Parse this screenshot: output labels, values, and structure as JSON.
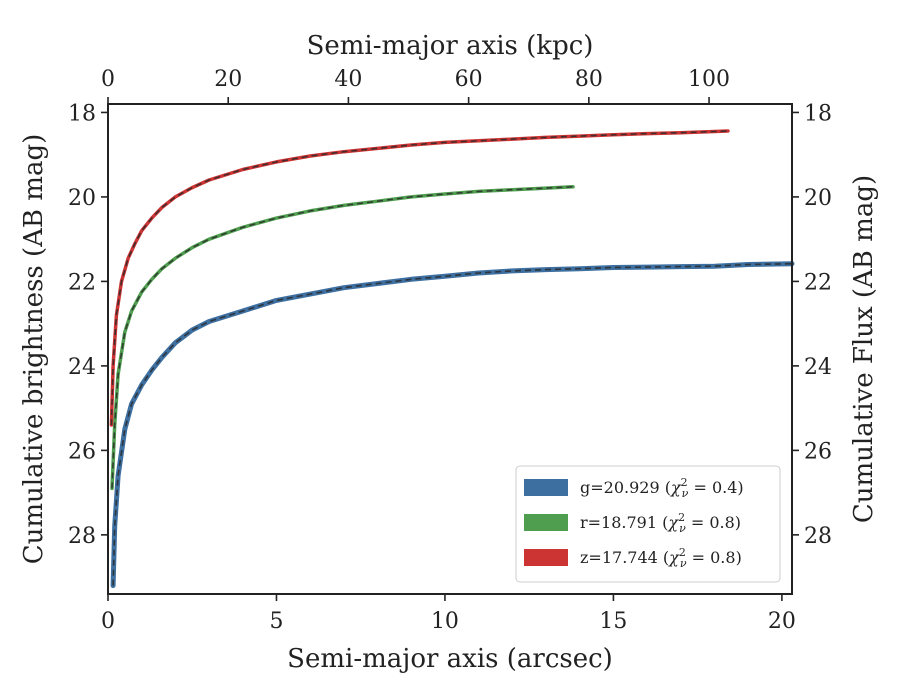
{
  "chart_data": {
    "type": "line",
    "xlabel": "Semi-major axis (arcsec)",
    "ylabel": "Cumulative brightness (AB mag)",
    "x2label": "Semi-major axis (kpc)",
    "y2label": "Cumulative Flux (AB mag)",
    "xlim": [
      0,
      20.3
    ],
    "ylim": [
      29.4,
      17.8
    ],
    "x2lim": [
      0,
      113.8
    ],
    "xticks": [
      0,
      5,
      10,
      15,
      20
    ],
    "xtick_labels": [
      "0",
      "5",
      "10",
      "15",
      "20"
    ],
    "yticks": [
      18,
      20,
      22,
      24,
      26,
      28
    ],
    "ytick_labels": [
      "18",
      "20",
      "22",
      "24",
      "26",
      "28"
    ],
    "x2ticks": [
      0,
      20,
      40,
      60,
      80,
      100
    ],
    "x2tick_labels": [
      "0",
      "20",
      "40",
      "60",
      "80",
      "100"
    ],
    "y2ticks": [
      18,
      20,
      22,
      24,
      26,
      28
    ],
    "y2tick_labels": [
      "18",
      "20",
      "22",
      "24",
      "26",
      "28"
    ],
    "legend_position": "lower-right",
    "series": [
      {
        "name": "g=20.929 (χ²ν = 0.4)",
        "legend_main": "g=20.929 (",
        "legend_chi": "χ",
        "legend_sup": "2",
        "legend_sub": "ν",
        "legend_rest": " = 0.4)",
        "color": "#3d6fa0",
        "x": [
          0.15,
          0.2,
          0.3,
          0.5,
          0.7,
          1.0,
          1.3,
          1.6,
          2.0,
          2.5,
          3.0,
          4.0,
          5.0,
          6.0,
          7.0,
          8.0,
          9.0,
          10.0,
          11.0,
          12.0,
          13.0,
          14.0,
          15.0,
          16.0,
          17.0,
          18.0,
          19.0,
          20.3
        ],
        "values": [
          29.2,
          27.8,
          26.6,
          25.5,
          24.9,
          24.45,
          24.1,
          23.8,
          23.45,
          23.15,
          22.95,
          22.7,
          22.45,
          22.3,
          22.15,
          22.05,
          21.95,
          21.88,
          21.8,
          21.75,
          21.72,
          21.7,
          21.67,
          21.66,
          21.65,
          21.64,
          21.6,
          21.58
        ]
      },
      {
        "name": "r=18.791 (χ²ν = 0.8)",
        "legend_main": "r=18.791 (",
        "legend_chi": "χ",
        "legend_sup": "2",
        "legend_sub": "ν",
        "legend_rest": " = 0.8)",
        "color": "#4f9e4f",
        "x": [
          0.12,
          0.2,
          0.3,
          0.5,
          0.7,
          1.0,
          1.3,
          1.6,
          2.0,
          2.5,
          3.0,
          4.0,
          5.0,
          6.0,
          7.0,
          8.0,
          9.0,
          10.0,
          11.0,
          12.0,
          13.0,
          13.8
        ],
        "values": [
          26.9,
          25.4,
          24.2,
          23.2,
          22.7,
          22.25,
          21.95,
          21.7,
          21.45,
          21.2,
          21.0,
          20.72,
          20.5,
          20.33,
          20.2,
          20.1,
          20.0,
          19.93,
          19.87,
          19.83,
          19.79,
          19.76
        ]
      },
      {
        "name": "z=17.744 (χ²ν = 0.8)",
        "legend_main": "z=17.744 (",
        "legend_chi": "χ",
        "legend_sup": "2",
        "legend_sub": "ν",
        "legend_rest": " = 0.8)",
        "color": "#cc3333",
        "x": [
          0.1,
          0.15,
          0.25,
          0.4,
          0.6,
          0.8,
          1.0,
          1.3,
          1.6,
          2.0,
          2.5,
          3.0,
          4.0,
          5.0,
          6.0,
          7.0,
          8.0,
          9.0,
          10.0,
          11.0,
          12.0,
          13.0,
          14.0,
          15.0,
          16.0,
          17.0,
          18.0,
          18.4
        ],
        "values": [
          25.4,
          24.0,
          22.8,
          22.0,
          21.45,
          21.1,
          20.8,
          20.5,
          20.25,
          20.0,
          19.78,
          19.6,
          19.35,
          19.17,
          19.03,
          18.93,
          18.85,
          18.77,
          18.71,
          18.67,
          18.63,
          18.59,
          18.56,
          18.53,
          18.5,
          18.48,
          18.45,
          18.44
        ]
      }
    ]
  }
}
